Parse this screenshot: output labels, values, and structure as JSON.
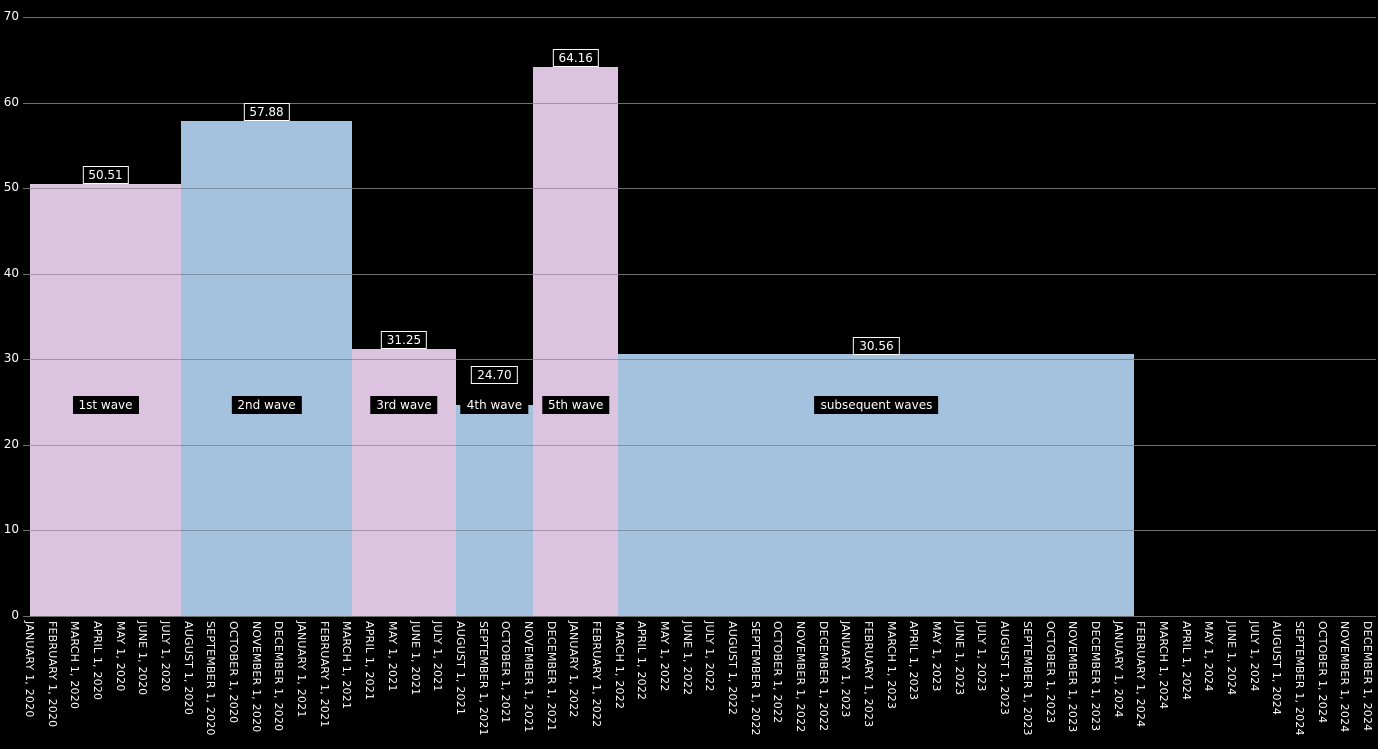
{
  "chart_data": {
    "type": "bar",
    "title": "",
    "xlabel": "",
    "ylabel": "",
    "ylim": [
      0,
      70
    ],
    "yticks": [
      0,
      10,
      20,
      30,
      40,
      50,
      60,
      70
    ],
    "grid": true,
    "legend": false,
    "wave_label_y_value": 24.66,
    "colors": {
      "pink": "#dcc4e0",
      "blue": "#a4c2de",
      "background": "#000000",
      "grid": "#969696",
      "text": "#ffffff"
    },
    "series": [
      {
        "label": "1st wave",
        "value": 50.51,
        "value_label": "50.51",
        "color_key": "pink",
        "start_month": 0.0,
        "end_month": 6.66
      },
      {
        "label": "2nd wave",
        "value": 57.88,
        "value_label": "57.88",
        "color_key": "blue",
        "start_month": 6.66,
        "end_month": 14.2
      },
      {
        "label": "3rd wave",
        "value": 31.25,
        "value_label": "31.25",
        "color_key": "pink",
        "start_month": 14.2,
        "end_month": 18.78
      },
      {
        "label": "4th wave",
        "value": 24.7,
        "value_label": "24.70",
        "color_key": "blue",
        "start_month": 18.78,
        "end_month": 22.18
      },
      {
        "label": "5th wave",
        "value": 64.16,
        "value_label": "64.16",
        "color_key": "pink",
        "start_month": 22.18,
        "end_month": 25.95
      },
      {
        "label": "subsequent waves",
        "value": 30.56,
        "value_label": "30.56",
        "color_key": "blue",
        "start_month": 25.95,
        "end_month": 48.7
      }
    ],
    "x_tick_labels": [
      "JANUARY 1, 2020",
      "FEBRUARY 1, 2020",
      "MARCH 1, 2020",
      "APRIL 1, 2020",
      "MAY 1, 2020",
      "JUNE 1, 2020",
      "JULY 1, 2020",
      "AUGUST 1, 2020",
      "SEPTEMBER 1, 2020",
      "OCTOBER 1, 2020",
      "NOVEMBER 1, 2020",
      "DECEMBER 1, 2020",
      "JANUARY 1, 2021",
      "FEBRUARY 1, 2021",
      "MARCH 1, 2021",
      "APRIL 1, 2021",
      "MAY 1, 2021",
      "JUNE 1, 2021",
      "JULY 1, 2021",
      "AUGUST 1, 2021",
      "SEPTEMBER 1, 2021",
      "OCTOBER 1, 2021",
      "NOVEMBER 1, 2021",
      "DECEMBER 1, 2021",
      "JANUARY 1, 2022",
      "FEBRUARY 1, 2022",
      "MARCH 1, 2022",
      "APRIL 1, 2022",
      "MAY 1, 2022",
      "JUNE 1, 2022",
      "JULY 1, 2022",
      "AUGUST 1, 2022",
      "SEPTEMBER 1, 2022",
      "OCTOBER 1, 2022",
      "NOVEMBER 1, 2022",
      "DECEMBER 1, 2022",
      "JANUARY 1, 2023",
      "FEBRUARY 1, 2023",
      "MARCH 1, 2023",
      "APRIL 1, 2023",
      "MAY 1, 2023",
      "JUNE 1, 2023",
      "JULY 1, 2023",
      "AUGUST 1, 2023",
      "SEPTEMBER 1, 2023",
      "OCTOBER 1, 2023",
      "NOVEMBER 1, 2023",
      "DECEMBER 1, 2023",
      "JANUARY 1, 2024",
      "FEBRUARY 1, 2024",
      "MARCH 1, 2024",
      "APRIL 1, 2024",
      "MAY 1, 2024",
      "JUNE 1, 2024",
      "JULY 1, 2024",
      "AUGUST 1, 2024",
      "SEPTEMBER 1, 2024",
      "OCTOBER 1, 2024",
      "NOVEMBER 1, 2024",
      "DECEMBER 1, 2024"
    ]
  }
}
